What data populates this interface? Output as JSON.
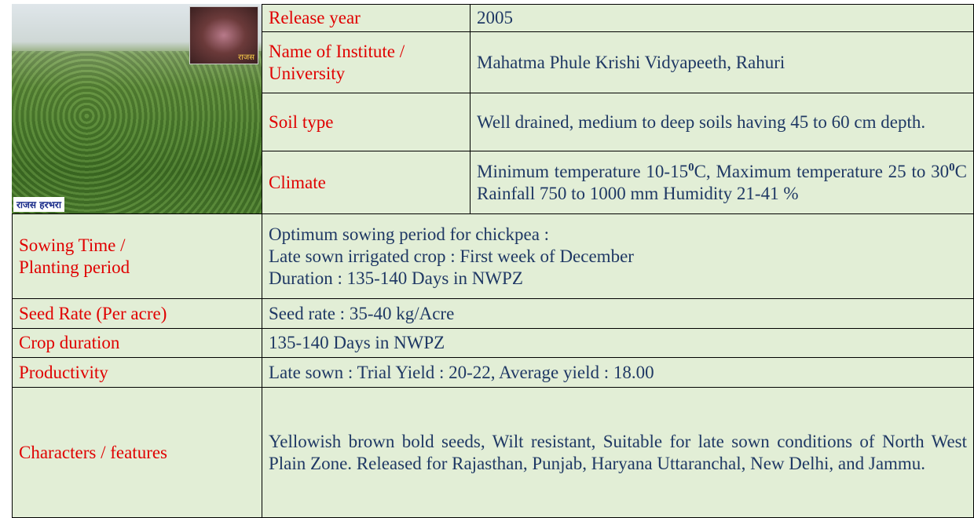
{
  "image": {
    "caption": "राजस हरभरा",
    "inset_label": "राजस"
  },
  "rows": [
    {
      "label": "Release year",
      "value": "2005"
    },
    {
      "label": "Name of Institute / University",
      "value": "Mahatma Phule Krishi Vidyapeeth, Rahuri"
    },
    {
      "label": "Soil type",
      "value": "Well drained, medium to deep soils having 45 to 60 cm depth."
    },
    {
      "label": "Climate",
      "value": [
        "Minimum temperature  10-15",
        "0",
        "C, Maximum temperature  25 to 30",
        "0",
        "C Rainfall  750 to 1000 mm Humidity 21-41 %"
      ]
    },
    {
      "label": "Sowing Time  / Planting  period",
      "value": [
        "Optimum sowing period for chickpea :",
        "Late sown irrigated crop : First week of December",
        "Duration : 135-140 Days in NWPZ"
      ]
    },
    {
      "label": "Seed Rate (Per acre)",
      "value": "Seed rate  :  35-40  kg/Acre"
    },
    {
      "label": "Crop duration",
      "value": "135-140 Days in NWPZ"
    },
    {
      "label": "Productivity",
      "value": "Late sown :  Trial Yield : 20-22, Average yield : 18.00"
    },
    {
      "label": "Characters / features",
      "value": "Yellowish brown bold seeds, Wilt resistant, Suitable for late sown conditions of North West Plain Zone. Released for Rajasthan, Punjab, Haryana Uttaranchal, New Delhi, and Jammu."
    }
  ]
}
